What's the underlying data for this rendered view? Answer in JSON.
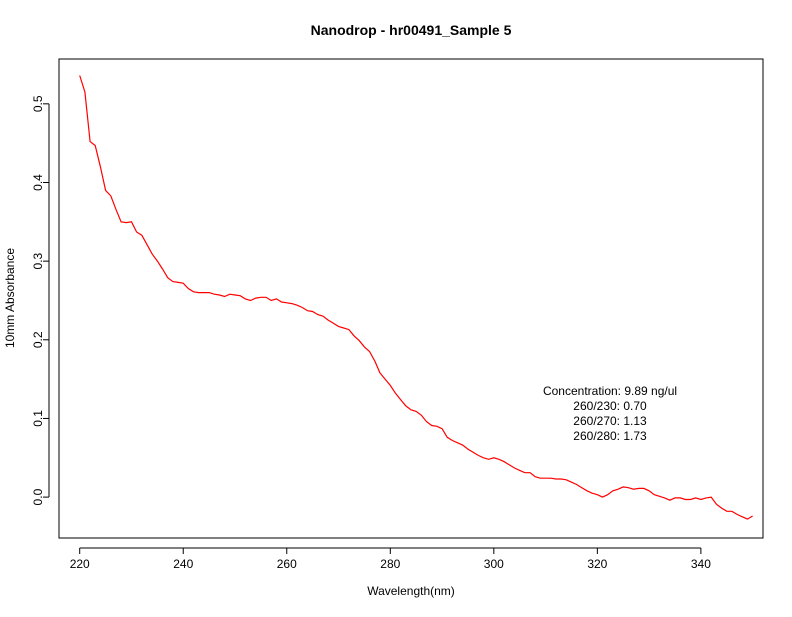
{
  "chart_data": {
    "type": "line",
    "title": "Nanodrop - hr00491_Sample 5",
    "xlabel": "Wavelength(nm)",
    "ylabel": "10mm Absorbance",
    "xlim": [
      216,
      352
    ],
    "ylim": [
      -0.052,
      0.557
    ],
    "xticks": [
      220,
      240,
      260,
      280,
      300,
      320,
      340
    ],
    "yticks": [
      0.0,
      0.1,
      0.2,
      0.3,
      0.4,
      0.5
    ],
    "xtick_labels": [
      "220",
      "240",
      "260",
      "280",
      "300",
      "320",
      "340"
    ],
    "ytick_labels": [
      "0.0",
      "0.1",
      "0.2",
      "0.3",
      "0.4",
      "0.5"
    ],
    "grid": false,
    "legend": "none",
    "series_color": "#ff0000",
    "annotations": [
      "Concentration: 9.89 ng/ul",
      "260/230: 0.70",
      "260/270: 1.13",
      "260/280: 1.73"
    ],
    "series": [
      {
        "x": [
          220,
          221,
          222,
          223,
          224,
          225,
          226,
          227,
          228,
          229,
          230,
          231,
          232,
          233,
          234,
          235,
          236,
          237,
          238,
          239,
          240,
          241,
          242,
          243,
          244,
          245,
          246,
          247,
          248,
          249,
          250,
          251,
          252,
          253,
          254,
          255,
          256,
          257,
          258,
          259,
          260,
          261,
          262,
          263,
          264,
          265,
          266,
          267,
          268,
          269,
          270,
          271,
          272,
          273,
          274,
          275,
          276,
          277,
          278,
          279,
          280,
          281,
          282,
          283,
          284,
          285,
          286,
          287,
          288,
          289,
          290,
          291,
          292,
          293,
          294,
          295,
          296,
          297,
          298,
          299,
          300,
          301,
          302,
          303,
          304,
          305,
          306,
          307,
          308,
          309,
          310,
          311,
          312,
          313,
          314,
          315,
          316,
          317,
          318,
          319,
          320,
          321,
          322,
          323,
          324,
          325,
          326,
          327,
          328,
          329,
          330,
          331,
          332,
          333,
          334,
          335,
          336,
          337,
          338,
          339,
          340,
          341,
          342,
          343,
          344,
          345,
          346,
          347,
          348,
          349,
          350
        ],
        "y": [
          0.536,
          0.515,
          0.452,
          0.447,
          0.42,
          0.39,
          0.383,
          0.366,
          0.35,
          0.349,
          0.35,
          0.337,
          0.333,
          0.321,
          0.309,
          0.3,
          0.29,
          0.279,
          0.274,
          0.273,
          0.272,
          0.265,
          0.261,
          0.26,
          0.26,
          0.26,
          0.258,
          0.257,
          0.255,
          0.258,
          0.257,
          0.256,
          0.252,
          0.25,
          0.253,
          0.254,
          0.254,
          0.25,
          0.252,
          0.248,
          0.247,
          0.246,
          0.244,
          0.241,
          0.237,
          0.236,
          0.232,
          0.23,
          0.225,
          0.221,
          0.217,
          0.215,
          0.213,
          0.205,
          0.199,
          0.191,
          0.185,
          0.173,
          0.158,
          0.15,
          0.142,
          0.132,
          0.124,
          0.116,
          0.111,
          0.109,
          0.104,
          0.096,
          0.091,
          0.09,
          0.087,
          0.076,
          0.072,
          0.069,
          0.066,
          0.061,
          0.057,
          0.053,
          0.05,
          0.048,
          0.05,
          0.048,
          0.045,
          0.041,
          0.037,
          0.034,
          0.031,
          0.031,
          0.026,
          0.024,
          0.024,
          0.024,
          0.023,
          0.023,
          0.022,
          0.019,
          0.016,
          0.012,
          0.008,
          0.005,
          0.003,
          0.0,
          0.003,
          0.008,
          0.01,
          0.013,
          0.012,
          0.01,
          0.011,
          0.011,
          0.008,
          0.003,
          0.001,
          -0.001,
          -0.004,
          -0.001,
          -0.001,
          -0.003,
          -0.003,
          -0.001,
          -0.003,
          -0.001,
          0.0,
          -0.009,
          -0.014,
          -0.018,
          -0.018,
          -0.022,
          -0.025,
          -0.028,
          -0.024
        ]
      }
    ]
  }
}
